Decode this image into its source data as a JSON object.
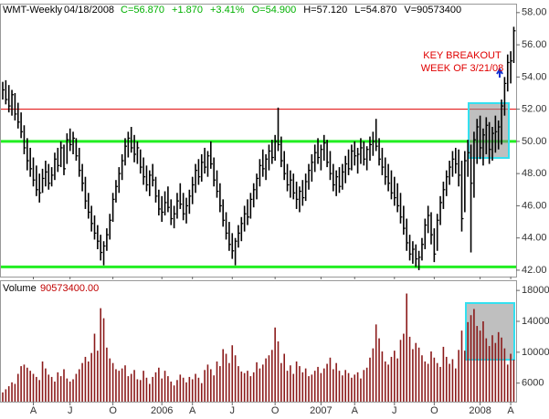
{
  "chart_data": [
    {
      "type": "ohlc",
      "title": "WMT-Weekly",
      "date": "04/18/2008",
      "quote": [
        "C=56.870",
        "+1.870",
        "+3.41%",
        "O=54.900",
        "H=57.120",
        "L=54.870",
        "V=90573400"
      ],
      "quote_colors": [
        "#00b000",
        "#00b000",
        "#00b000",
        "#00b000",
        "#000000",
        "#000000",
        "#000000"
      ],
      "annotation": [
        "KEY BREAKOUT",
        "WEEK OF 3/21/08"
      ],
      "annotation_color": "#e00000",
      "color": "#000000",
      "ylim": [
        41.6,
        58.5
      ],
      "yticks": [
        {
          "value": 42,
          "label": "42.00"
        },
        {
          "value": 44,
          "label": "44.00"
        },
        {
          "value": 46,
          "label": "46.00"
        },
        {
          "value": 48,
          "label": "48.00"
        },
        {
          "value": 50,
          "label": "50.00"
        },
        {
          "value": 52,
          "label": "52.00"
        },
        {
          "value": 54,
          "label": "54.00"
        },
        {
          "value": 56,
          "label": "56.00"
        },
        {
          "value": 58,
          "label": "58.00"
        }
      ],
      "levels": [
        {
          "value": 52,
          "color": "#e00000"
        },
        {
          "value": 50,
          "color": "#22ee22"
        },
        {
          "value": 42.2,
          "color": "#22ee22"
        }
      ],
      "high": [
        53.7,
        53.8,
        53.5,
        53.2,
        53.0,
        52.4,
        51.8,
        51.0,
        50.2,
        49.6,
        49.0,
        48.5,
        48.0,
        48.3,
        48.8,
        48.6,
        48.4,
        49.3,
        49.6,
        50.0,
        49.8,
        50.5,
        50.8,
        50.6,
        50.2,
        49.6,
        48.6,
        47.8,
        46.8,
        46.0,
        45.4,
        44.8,
        44.2,
        43.8,
        44.6,
        45.5,
        46.8,
        47.6,
        48.4,
        49.2,
        50.2,
        50.6,
        50.9,
        50.4,
        50.0,
        49.5,
        49.0,
        48.5,
        48.2,
        48.6,
        47.8,
        47.0,
        46.6,
        46.9,
        47.2,
        46.4,
        46.0,
        46.8,
        47.4,
        46.8,
        46.5,
        47.0,
        47.8,
        48.6,
        48.9,
        49.2,
        49.6,
        49.4,
        50.0,
        49.0,
        48.2,
        47.4,
        46.4,
        45.6,
        45.0,
        44.3,
        44.0,
        44.8,
        45.3,
        46.0,
        46.4,
        46.8,
        47.4,
        48.0,
        48.9,
        49.5,
        49.2,
        49.8,
        50.1,
        50.4,
        52.1,
        50.3,
        49.4,
        48.6,
        48.2,
        48.0,
        47.5,
        47.2,
        47.6,
        48.0,
        48.6,
        49.2,
        49.8,
        50.2,
        49.8,
        50.4,
        50.1,
        49.4,
        48.6,
        48.2,
        48.4,
        48.6,
        49.1,
        49.5,
        49.8,
        50.0,
        49.6,
        50.2,
        50.0,
        49.7,
        50.3,
        50.6,
        51.4,
        50.2,
        49.6,
        49.0,
        48.6,
        48.2,
        47.8,
        47.4,
        46.8,
        46.0,
        45.2,
        44.2,
        43.8,
        43.6,
        43.2,
        44.0,
        45.2,
        46.0,
        45.6,
        44.6,
        45.5,
        46.6,
        47.5,
        48.2,
        48.8,
        49.4,
        49.6,
        49.5,
        48.8,
        49.4,
        50.1,
        49.8,
        50.6,
        51.4,
        51.6,
        50.8,
        51.5,
        51.2,
        50.9,
        51.6,
        51.3,
        52.6,
        54.0,
        55.4,
        55.6,
        57.12
      ],
      "low": [
        52.6,
        52.3,
        51.8,
        51.6,
        51.3,
        50.8,
        50.2,
        49.2,
        48.2,
        47.8,
        47.2,
        46.6,
        46.2,
        46.8,
        47.2,
        47.0,
        47.2,
        47.6,
        48.1,
        48.4,
        47.9,
        48.6,
        49.4,
        49.2,
        48.8,
        47.8,
        46.9,
        45.8,
        45.2,
        44.4,
        43.9,
        43.3,
        42.6,
        42.3,
        43.2,
        43.9,
        45.0,
        46.2,
        46.8,
        47.6,
        48.5,
        49.0,
        49.3,
        48.7,
        48.6,
        48.0,
        47.3,
        46.9,
        46.6,
        47.2,
        46.2,
        45.4,
        45.0,
        45.4,
        45.6,
        44.8,
        44.6,
        45.2,
        45.8,
        45.1,
        44.9,
        45.5,
        46.1,
        46.8,
        47.3,
        47.5,
        48.0,
        47.8,
        48.3,
        47.2,
        46.5,
        45.6,
        44.7,
        43.9,
        43.2,
        42.7,
        42.3,
        43.4,
        43.8,
        44.4,
        44.8,
        45.2,
        45.9,
        46.4,
        47.2,
        47.8,
        47.6,
        48.2,
        48.6,
        48.8,
        49.4,
        48.4,
        47.6,
        46.9,
        46.5,
        46.4,
        45.8,
        45.6,
        46.0,
        46.3,
        47.0,
        47.5,
        48.1,
        48.6,
        48.2,
        48.8,
        48.4,
        47.6,
        46.9,
        46.6,
        46.8,
        47.0,
        47.4,
        47.9,
        48.2,
        48.5,
        48.0,
        48.6,
        48.5,
        48.2,
        48.8,
        49.1,
        49.4,
        48.5,
        47.9,
        47.3,
        46.9,
        46.4,
        46.0,
        45.6,
        44.9,
        44.2,
        43.2,
        42.6,
        42.4,
        42.2,
        42.0,
        42.6,
        43.3,
        44.3,
        43.6,
        42.5,
        43.2,
        44.8,
        45.8,
        46.6,
        47.3,
        47.8,
        48.0,
        47.2,
        44.4,
        45.6,
        47.8,
        43.1,
        46.5,
        48.6,
        48.9,
        48.5,
        49.2,
        48.6,
        48.8,
        49.3,
        49.5,
        49.8,
        51.6,
        53.1,
        53.6,
        54.87
      ],
      "close": [
        53.2,
        52.6,
        52.2,
        52.9,
        51.7,
        51.2,
        50.6,
        49.6,
        48.8,
        48.3,
        47.6,
        47.0,
        46.8,
        47.7,
        48.1,
        47.4,
        47.9,
        48.9,
        48.5,
        49.6,
        48.3,
        50.1,
        49.8,
        50.2,
        49.1,
        48.2,
        47.4,
        46.3,
        45.6,
        44.9,
        44.3,
        43.8,
        43.1,
        43.5,
        44.2,
        45.1,
        46.4,
        47.2,
        48.0,
        48.8,
        49.7,
        50.2,
        49.6,
        49.2,
        49.6,
        48.4,
        47.8,
        47.3,
        47.9,
        47.6,
        46.6,
        45.8,
        45.6,
        46.2,
        45.9,
        45.2,
        45.5,
        46.3,
        46.1,
        45.5,
        46.0,
        46.6,
        47.3,
        48.2,
        47.8,
        48.7,
        48.4,
        49.1,
        48.6,
        47.6,
        46.9,
        46.0,
        45.1,
        44.3,
        43.6,
        43.2,
        43.8,
        44.3,
        44.9,
        45.5,
        45.3,
        46.4,
        47.0,
        47.7,
        48.5,
        48.3,
        48.9,
        49.4,
        49.0,
        50.0,
        49.8,
        48.8,
        48.0,
        47.3,
        47.6,
        46.8,
        46.4,
        46.9,
        46.5,
        47.5,
        48.2,
        48.7,
        49.3,
        49.0,
        49.5,
        49.9,
        48.7,
        48.0,
        47.3,
        47.8,
        47.2,
        48.1,
        48.6,
        48.3,
        49.4,
        49.1,
        49.2,
        49.6,
        48.9,
        49.5,
        49.8,
        50.0,
        49.7,
        48.9,
        48.4,
        47.8,
        47.4,
        46.8,
        46.5,
        46.0,
        45.3,
        44.6,
        43.7,
        43.0,
        43.3,
        42.7,
        42.8,
        43.6,
        44.8,
        45.4,
        44.2,
        43.0,
        45.1,
        46.2,
        47.0,
        47.8,
        48.4,
        48.9,
        48.6,
        47.9,
        45.2,
        48.8,
        49.3,
        47.4,
        50.1,
        50.9,
        49.6,
        50.4,
        51.0,
        49.5,
        50.5,
        50.6,
        50.9,
        52.2,
        53.6,
        54.9,
        55.0,
        56.87
      ]
    },
    {
      "type": "bar",
      "title": "Volume",
      "value_label": "90573400.00",
      "title_color": "#000000",
      "value_label_color": "#c00000",
      "color": "#8b1a1a",
      "ylim": [
        3600,
        19200
      ],
      "yticks": [
        6000,
        10000,
        14000,
        18000
      ],
      "categories": [
        null,
        null,
        null,
        null,
        null,
        null,
        null,
        null,
        null,
        null,
        "A",
        null,
        null,
        null,
        null,
        null,
        null,
        null,
        null,
        null,
        null,
        null,
        "J",
        null,
        null,
        null,
        null,
        null,
        null,
        null,
        null,
        null,
        null,
        null,
        null,
        null,
        "O",
        null,
        null,
        null,
        null,
        null,
        null,
        null,
        null,
        null,
        null,
        null,
        null,
        null,
        null,
        null,
        "2006",
        null,
        null,
        null,
        null,
        null,
        null,
        null,
        null,
        null,
        "A",
        null,
        null,
        null,
        null,
        null,
        null,
        null,
        null,
        null,
        null,
        null,
        null,
        "J",
        null,
        null,
        null,
        null,
        null,
        null,
        null,
        null,
        null,
        null,
        null,
        null,
        null,
        "O",
        null,
        null,
        null,
        null,
        null,
        null,
        null,
        null,
        null,
        null,
        null,
        null,
        null,
        null,
        "2007",
        null,
        null,
        null,
        null,
        null,
        null,
        null,
        null,
        null,
        null,
        "A",
        null,
        null,
        null,
        null,
        null,
        null,
        null,
        null,
        null,
        null,
        null,
        null,
        "J",
        null,
        null,
        null,
        null,
        null,
        null,
        null,
        null,
        null,
        null,
        null,
        null,
        "O",
        null,
        null,
        null,
        null,
        null,
        null,
        null,
        null,
        null,
        null,
        null,
        null,
        null,
        null,
        "2008",
        null,
        null,
        null,
        null,
        null,
        null,
        null,
        null,
        null,
        "A",
        null
      ],
      "values": [
        4800,
        5200,
        5600,
        6100,
        5900,
        7200,
        8200,
        8400,
        8000,
        7600,
        7200,
        6800,
        6400,
        8800,
        7900,
        7100,
        6800,
        6200,
        7400,
        6900,
        7800,
        6600,
        6200,
        6500,
        7200,
        7800,
        8600,
        9400,
        8800,
        9900,
        12400,
        10200,
        15700,
        14400,
        10600,
        9200,
        8600,
        7800,
        7600,
        7900,
        8300,
        6900,
        7200,
        7700,
        6500,
        6400,
        7600,
        6700,
        5900,
        6800,
        7400,
        8000,
        6600,
        7600,
        6900,
        6200,
        5700,
        6400,
        7100,
        6700,
        6100,
        6800,
        6500,
        7200,
        6700,
        6000,
        7700,
        8400,
        7800,
        7000,
        8800,
        8200,
        10400,
        9800,
        8600,
        10900,
        9600,
        8200,
        7500,
        7300,
        7600,
        6900,
        7400,
        8700,
        7900,
        8400,
        9200,
        9600,
        10300,
        13200,
        11400,
        8600,
        9800,
        7600,
        8300,
        7200,
        8800,
        8200,
        7400,
        7900,
        6900,
        7100,
        7600,
        8100,
        7300,
        7900,
        8500,
        9300,
        7800,
        8600,
        7600,
        7000,
        7700,
        7300,
        6700,
        7100,
        7400,
        6600,
        7700,
        8000,
        9300,
        10500,
        13600,
        11800,
        10100,
        8800,
        8400,
        9400,
        10200,
        9200,
        11600,
        12400,
        17600,
        12000,
        10400,
        11200,
        10600,
        9600,
        8800,
        8500,
        10100,
        9300,
        8600,
        8100,
        10700,
        9400,
        8500,
        9100,
        7900,
        10300,
        12800,
        10200,
        13900,
        14800,
        15600,
        13400,
        12800,
        14000,
        11800,
        10800,
        12200,
        11200,
        12600,
        11900,
        10500,
        8400,
        9800,
        9057
      ]
    }
  ]
}
